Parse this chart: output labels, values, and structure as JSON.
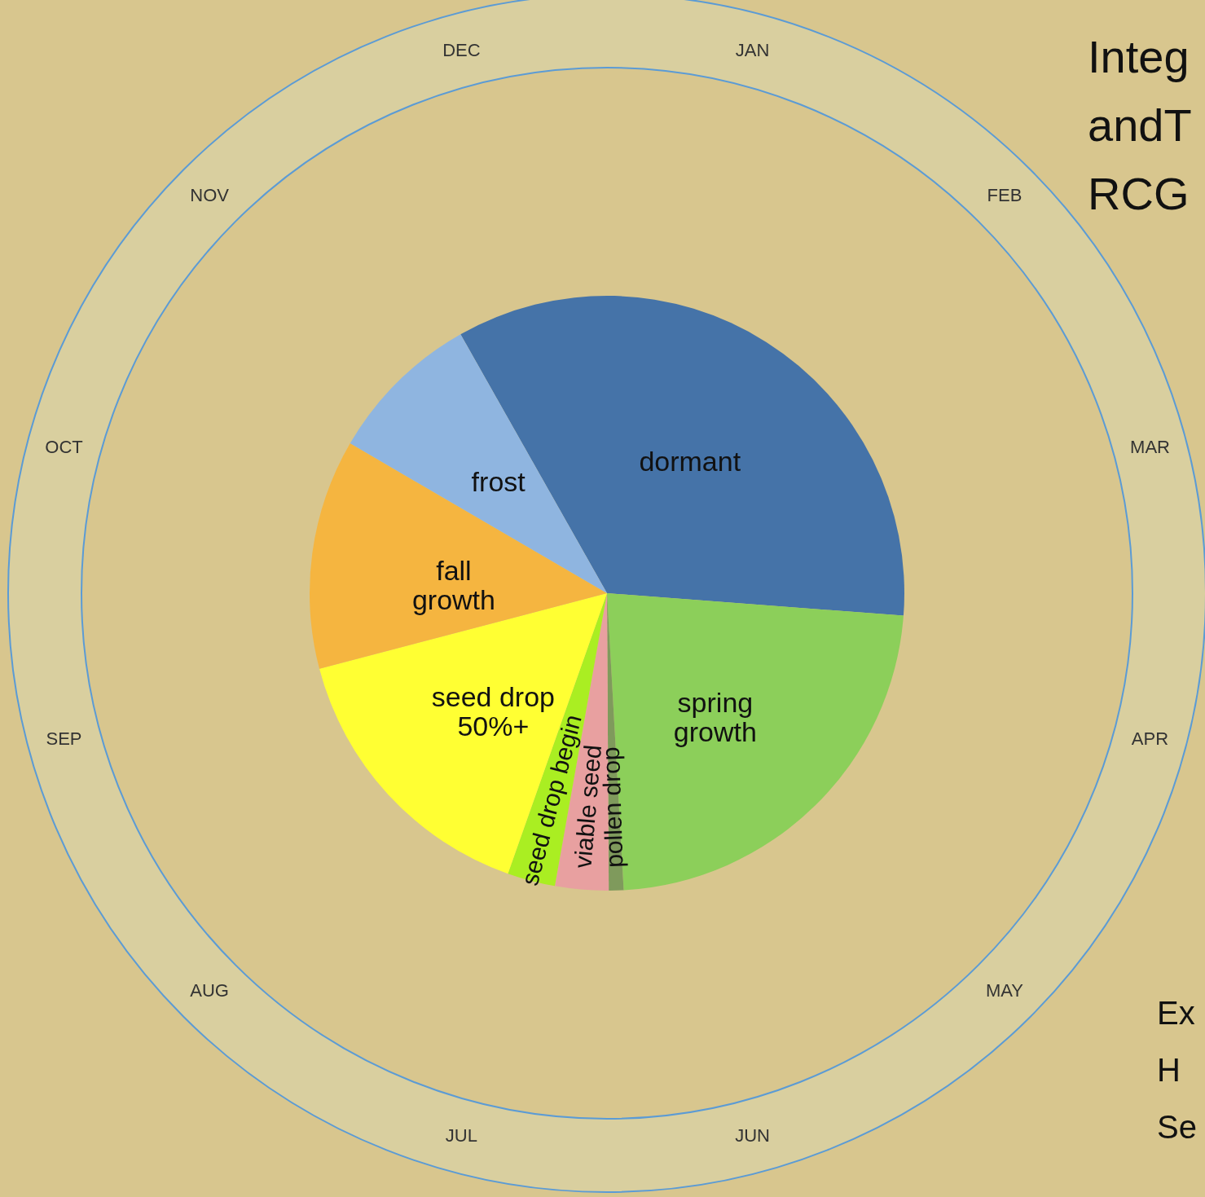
{
  "chart_data": {
    "type": "pie",
    "title": "Integ\nandT\nRCG",
    "categories": [
      "dormant",
      "spring\ngrowth",
      "pollen drop",
      "viable seed",
      "seed drop begin",
      "seed drop\n50%+",
      "fall\ngrowth",
      "frost"
    ],
    "values": [
      34.4,
      22.9,
      0.8,
      2.9,
      2.6,
      15.5,
      12.5,
      8.4
    ],
    "colors": [
      "#4573a8",
      "#8ccf5a",
      "#7f9a5c",
      "#e8a0a0",
      "#aaee22",
      "#ffff33",
      "#f5b540",
      "#8fb5e0"
    ],
    "annotations": [
      "JAN",
      "FEB",
      "MAR",
      "APR",
      "MAY",
      "JUN",
      "JUL",
      "AUG",
      "SEP",
      "OCT",
      "NOV",
      "DEC",
      "Ex",
      "H",
      "Se"
    ]
  }
}
